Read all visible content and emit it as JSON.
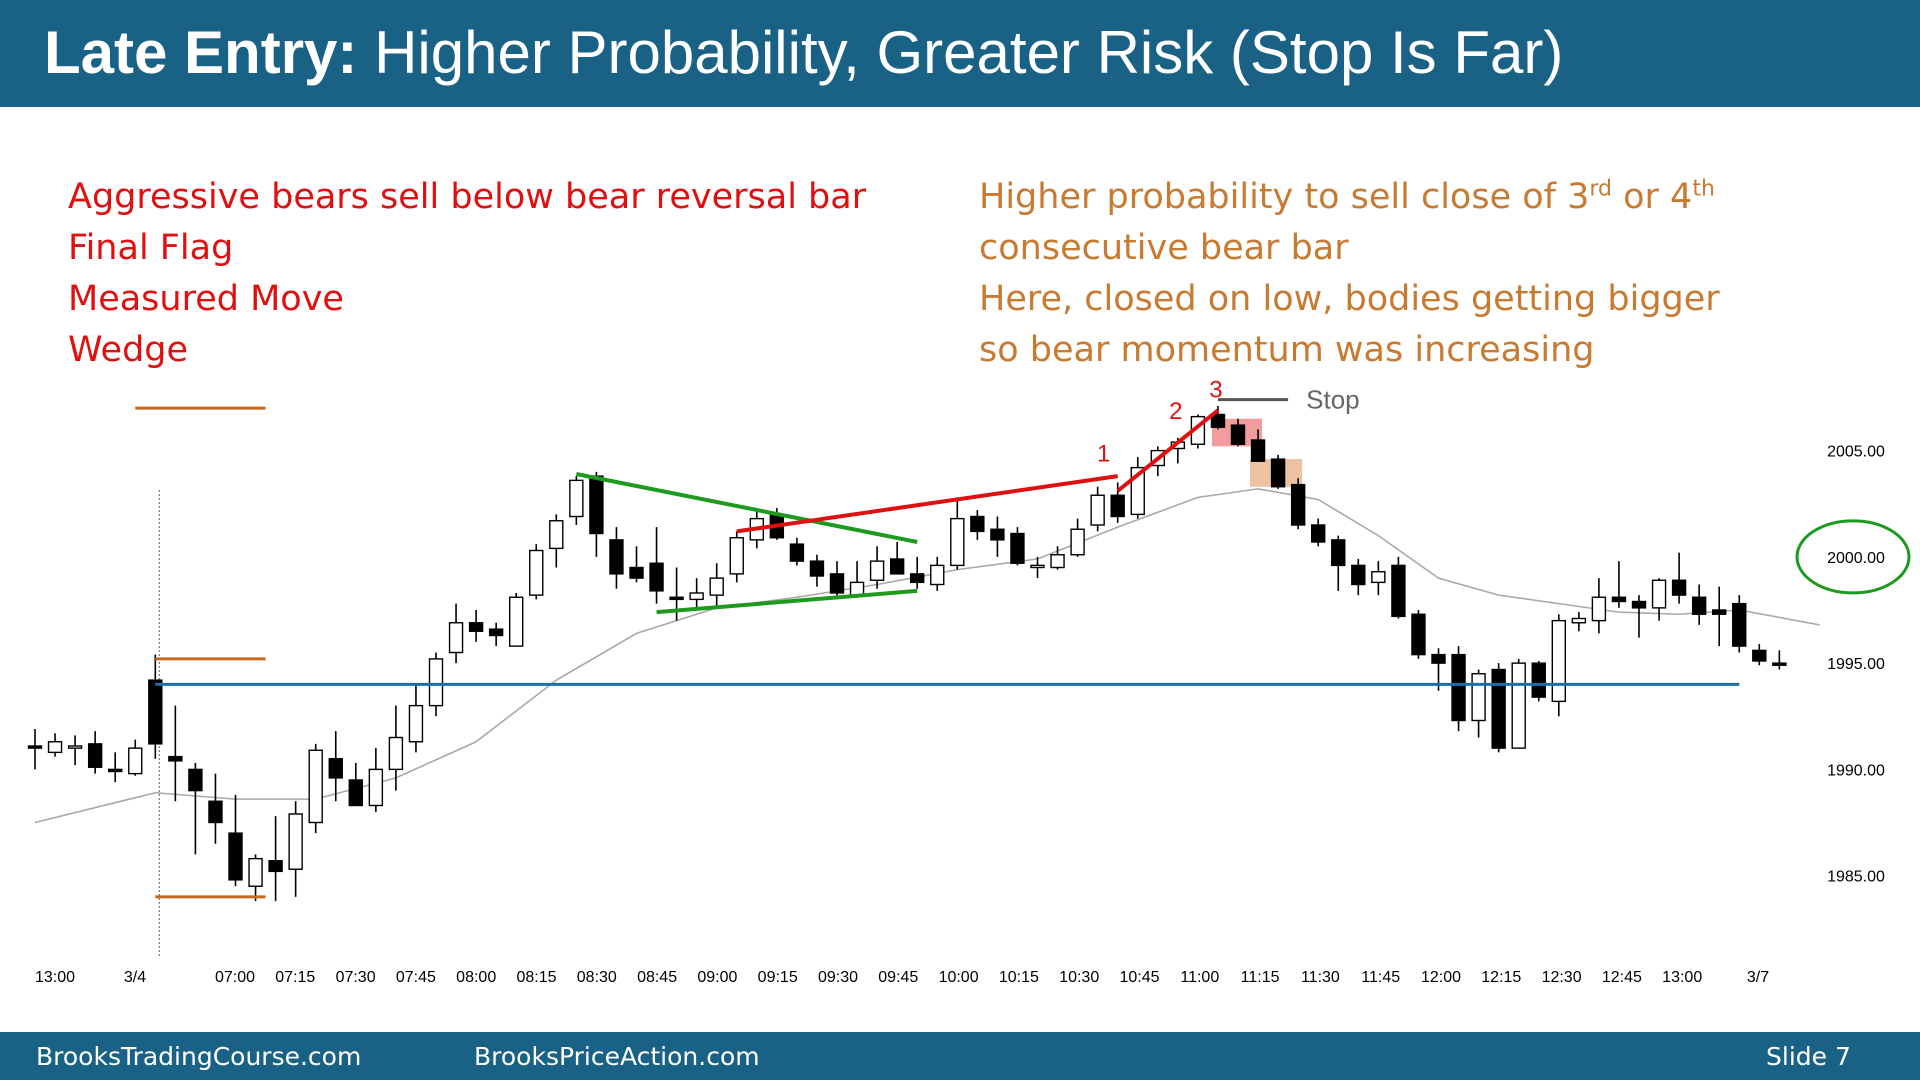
{
  "header": {
    "title_bold": "Late Entry:",
    "title_rest": "Higher Probability, Greater Risk (Stop Is Far)"
  },
  "notes_left": [
    "Aggressive bears sell below bear reversal bar",
    "Final Flag",
    "Measured Move",
    "Wedge"
  ],
  "notes_right": {
    "line1_a": "Higher probability to sell close of 3",
    "line1_sup1": "rd",
    "line1_b": " or 4",
    "line1_sup2": "th",
    "line2": "consecutive bear bar",
    "line3": "Here, closed on low, bodies getting bigger",
    "line4": "so bear momentum was increasing"
  },
  "footer": {
    "left": "BrooksTradingCourse.com",
    "mid": "BrooksPriceAction.com",
    "right": "Slide  7"
  },
  "colors": {
    "header_bg": "#1a6285",
    "red_text": "#e01010",
    "orange_text": "#c87a30",
    "bull_trendline": "#1e9a1e",
    "bear_trendline": "#e01010",
    "support": "#1f6ea8",
    "ema": "#a8a8a8",
    "measured_move": "#c8691e"
  },
  "chart_data": {
    "type": "candlestick",
    "ylim": [
      1981.5,
      2009.5
    ],
    "yticks": [
      1985,
      1990,
      1995,
      2000,
      2005
    ],
    "ytick_labels": [
      "1985.00",
      "1990.00",
      "1995.00",
      "2000.00",
      "2005.00"
    ],
    "x_labels": [
      "13:00",
      "3/4",
      "07:00",
      "07:15",
      "07:30",
      "07:45",
      "08:00",
      "08:15",
      "08:30",
      "08:45",
      "09:00",
      "09:15",
      "09:30",
      "09:45",
      "10:00",
      "10:15",
      "10:30",
      "10:45",
      "11:00",
      "11:15",
      "11:30",
      "11:45",
      "12:00",
      "12:15",
      "12:30",
      "12:45",
      "13:00",
      "3/7"
    ],
    "bar_interval": "5 min",
    "candles": [
      {
        "o": 1991.1,
        "h": 1991.9,
        "l": 1990.0,
        "c": 1991.0
      },
      {
        "o": 1990.8,
        "h": 1991.7,
        "l": 1990.6,
        "c": 1991.3
      },
      {
        "o": 1991.0,
        "h": 1991.6,
        "l": 1990.2,
        "c": 1991.1
      },
      {
        "o": 1991.2,
        "h": 1991.8,
        "l": 1989.8,
        "c": 1990.1
      },
      {
        "o": 1990.0,
        "h": 1990.8,
        "l": 1989.4,
        "c": 1989.9
      },
      {
        "o": 1989.8,
        "h": 1991.4,
        "l": 1989.7,
        "c": 1991.0
      },
      {
        "o": 1994.2,
        "h": 1995.4,
        "l": 1990.5,
        "c": 1991.2
      },
      {
        "o": 1990.6,
        "h": 1993.0,
        "l": 1988.5,
        "c": 1990.4
      },
      {
        "o": 1990.0,
        "h": 1990.3,
        "l": 1986.0,
        "c": 1989.0
      },
      {
        "o": 1988.5,
        "h": 1989.8,
        "l": 1986.5,
        "c": 1987.5
      },
      {
        "o": 1987.0,
        "h": 1988.8,
        "l": 1984.5,
        "c": 1984.8
      },
      {
        "o": 1984.5,
        "h": 1986.0,
        "l": 1983.8,
        "c": 1985.8
      },
      {
        "o": 1985.7,
        "h": 1987.8,
        "l": 1983.8,
        "c": 1985.2
      },
      {
        "o": 1985.3,
        "h": 1988.5,
        "l": 1984.0,
        "c": 1987.9
      },
      {
        "o": 1987.5,
        "h": 1991.2,
        "l": 1987.0,
        "c": 1990.9
      },
      {
        "o": 1990.5,
        "h": 1991.8,
        "l": 1988.5,
        "c": 1989.6
      },
      {
        "o": 1989.5,
        "h": 1990.3,
        "l": 1988.4,
        "c": 1988.3
      },
      {
        "o": 1988.3,
        "h": 1991.0,
        "l": 1988.0,
        "c": 1990.0
      },
      {
        "o": 1990.0,
        "h": 1993.0,
        "l": 1989.0,
        "c": 1991.5
      },
      {
        "o": 1991.3,
        "h": 1994.0,
        "l": 1990.8,
        "c": 1993.0
      },
      {
        "o": 1993.0,
        "h": 1995.5,
        "l": 1992.5,
        "c": 1995.2
      },
      {
        "o": 1995.5,
        "h": 1997.8,
        "l": 1995.0,
        "c": 1996.9
      },
      {
        "o": 1996.9,
        "h": 1997.5,
        "l": 1996.0,
        "c": 1996.5
      },
      {
        "o": 1996.6,
        "h": 1996.9,
        "l": 1995.8,
        "c": 1996.3
      },
      {
        "o": 1995.8,
        "h": 1998.3,
        "l": 1995.8,
        "c": 1998.1
      },
      {
        "o": 1998.2,
        "h": 2000.6,
        "l": 1998.0,
        "c": 2000.3
      },
      {
        "o": 2000.4,
        "h": 2002.0,
        "l": 1999.5,
        "c": 2001.7
      },
      {
        "o": 2001.9,
        "h": 2003.8,
        "l": 2001.5,
        "c": 2003.6
      },
      {
        "o": 2003.8,
        "h": 2004.0,
        "l": 2000.0,
        "c": 2001.1
      },
      {
        "o": 2000.8,
        "h": 2001.4,
        "l": 1998.5,
        "c": 1999.2
      },
      {
        "o": 1999.5,
        "h": 2000.5,
        "l": 1998.8,
        "c": 1999.0
      },
      {
        "o": 1999.7,
        "h": 2001.4,
        "l": 1997.8,
        "c": 1998.4
      },
      {
        "o": 1998.1,
        "h": 1999.5,
        "l": 1997.0,
        "c": 1998.0
      },
      {
        "o": 1998.0,
        "h": 1999.0,
        "l": 1997.6,
        "c": 1998.3
      },
      {
        "o": 1998.2,
        "h": 1999.7,
        "l": 1997.7,
        "c": 1999.0
      },
      {
        "o": 1999.2,
        "h": 2001.2,
        "l": 1998.8,
        "c": 2000.9
      },
      {
        "o": 2000.8,
        "h": 2002.3,
        "l": 2000.4,
        "c": 2001.8
      },
      {
        "o": 2002.0,
        "h": 2002.3,
        "l": 2000.8,
        "c": 2000.9
      },
      {
        "o": 2000.6,
        "h": 2000.9,
        "l": 1999.6,
        "c": 1999.8
      },
      {
        "o": 1999.8,
        "h": 2000.1,
        "l": 1998.6,
        "c": 1999.1
      },
      {
        "o": 1999.2,
        "h": 1999.8,
        "l": 1998.0,
        "c": 1998.3
      },
      {
        "o": 1998.2,
        "h": 1999.8,
        "l": 1998.1,
        "c": 1998.8
      },
      {
        "o": 1998.9,
        "h": 2000.5,
        "l": 1998.5,
        "c": 1999.8
      },
      {
        "o": 1999.9,
        "h": 2000.7,
        "l": 1999.4,
        "c": 1999.2
      },
      {
        "o": 1999.2,
        "h": 2000.0,
        "l": 1998.5,
        "c": 1998.8
      },
      {
        "o": 1998.7,
        "h": 2000.0,
        "l": 1998.4,
        "c": 1999.6
      },
      {
        "o": 1999.6,
        "h": 2002.8,
        "l": 1999.4,
        "c": 2001.8
      },
      {
        "o": 2001.9,
        "h": 2002.2,
        "l": 2000.8,
        "c": 2001.2
      },
      {
        "o": 2001.3,
        "h": 2001.9,
        "l": 2000.0,
        "c": 2000.8
      },
      {
        "o": 2001.1,
        "h": 2001.4,
        "l": 1999.6,
        "c": 1999.7
      },
      {
        "o": 1999.5,
        "h": 2000.0,
        "l": 1999.0,
        "c": 1999.6
      },
      {
        "o": 1999.5,
        "h": 2000.5,
        "l": 1999.4,
        "c": 2000.1
      },
      {
        "o": 2000.1,
        "h": 2001.8,
        "l": 2000.0,
        "c": 2001.3
      },
      {
        "o": 2001.5,
        "h": 2003.3,
        "l": 2001.2,
        "c": 2002.9
      },
      {
        "o": 2002.9,
        "h": 2003.5,
        "l": 2001.6,
        "c": 2001.9
      },
      {
        "o": 2002.0,
        "h": 2004.7,
        "l": 2001.8,
        "c": 2004.2
      },
      {
        "o": 2004.3,
        "h": 2005.2,
        "l": 2003.8,
        "c": 2005.0
      },
      {
        "o": 2005.1,
        "h": 2005.6,
        "l": 2004.4,
        "c": 2005.4
      },
      {
        "o": 2005.3,
        "h": 2006.7,
        "l": 2005.1,
        "c": 2006.6
      },
      {
        "o": 2006.7,
        "h": 2007.1,
        "l": 2006.0,
        "c": 2006.1
      },
      {
        "o": 2006.2,
        "h": 2006.5,
        "l": 2005.2,
        "c": 2005.3
      },
      {
        "o": 2005.5,
        "h": 2006.0,
        "l": 2004.5,
        "c": 2004.5
      },
      {
        "o": 2004.6,
        "h": 2004.8,
        "l": 2003.2,
        "c": 2003.3
      },
      {
        "o": 2003.4,
        "h": 2003.7,
        "l": 2001.3,
        "c": 2001.5
      },
      {
        "o": 2001.5,
        "h": 2001.8,
        "l": 2000.5,
        "c": 2000.7
      },
      {
        "o": 2000.8,
        "h": 2001.0,
        "l": 1998.4,
        "c": 1999.6
      },
      {
        "o": 1999.6,
        "h": 1999.9,
        "l": 1998.2,
        "c": 1998.7
      },
      {
        "o": 1998.8,
        "h": 1999.8,
        "l": 1998.2,
        "c": 1999.3
      },
      {
        "o": 1999.6,
        "h": 2000.0,
        "l": 1997.1,
        "c": 1997.2
      },
      {
        "o": 1997.3,
        "h": 1997.5,
        "l": 1995.2,
        "c": 1995.4
      },
      {
        "o": 1995.4,
        "h": 1995.7,
        "l": 1993.7,
        "c": 1995.0
      },
      {
        "o": 1995.4,
        "h": 1995.8,
        "l": 1991.8,
        "c": 1992.3
      },
      {
        "o": 1992.3,
        "h": 1994.7,
        "l": 1991.5,
        "c": 1994.5
      },
      {
        "o": 1994.7,
        "h": 1995.0,
        "l": 1990.8,
        "c": 1991.0
      },
      {
        "o": 1991.0,
        "h": 1995.2,
        "l": 1991.0,
        "c": 1995.0
      },
      {
        "o": 1995.0,
        "h": 1995.1,
        "l": 1993.2,
        "c": 1993.4
      },
      {
        "o": 1993.2,
        "h": 1997.3,
        "l": 1992.5,
        "c": 1997.0
      },
      {
        "o": 1996.9,
        "h": 1997.4,
        "l": 1996.5,
        "c": 1997.1
      },
      {
        "o": 1997.0,
        "h": 1999.0,
        "l": 1996.4,
        "c": 1998.1
      },
      {
        "o": 1998.1,
        "h": 1999.8,
        "l": 1997.6,
        "c": 1997.9
      },
      {
        "o": 1997.9,
        "h": 1998.2,
        "l": 1996.2,
        "c": 1997.6
      },
      {
        "o": 1997.6,
        "h": 1999.0,
        "l": 1997.0,
        "c": 1998.9
      },
      {
        "o": 1998.9,
        "h": 2000.2,
        "l": 1997.8,
        "c": 1998.2
      },
      {
        "o": 1998.1,
        "h": 1998.7,
        "l": 1996.8,
        "c": 1997.3
      },
      {
        "o": 1997.5,
        "h": 1998.6,
        "l": 1995.8,
        "c": 1997.3
      },
      {
        "o": 1997.8,
        "h": 1998.2,
        "l": 1995.5,
        "c": 1995.8
      },
      {
        "o": 1995.6,
        "h": 1995.9,
        "l": 1994.9,
        "c": 1995.1
      },
      {
        "o": 1995.0,
        "h": 1995.6,
        "l": 1994.7,
        "c": 1994.9
      }
    ],
    "ema": [
      [
        0,
        1987.5
      ],
      [
        6,
        1988.9
      ],
      [
        10,
        1988.6
      ],
      [
        14,
        1988.6
      ],
      [
        18,
        1989.6
      ],
      [
        22,
        1991.3
      ],
      [
        26,
        1994.2
      ],
      [
        30,
        1996.4
      ],
      [
        34,
        1997.6
      ],
      [
        38,
        1998.1
      ],
      [
        42,
        1998.7
      ],
      [
        46,
        1999.4
      ],
      [
        50,
        1999.9
      ],
      [
        54,
        2001.4
      ],
      [
        58,
        2002.8
      ],
      [
        61,
        2003.2
      ],
      [
        64,
        2002.7
      ],
      [
        67,
        2001.0
      ],
      [
        70,
        1999.0
      ],
      [
        73,
        1998.2
      ],
      [
        76,
        1997.8
      ],
      [
        79,
        1997.4
      ],
      [
        82,
        1997.3
      ],
      [
        85,
        1997.5
      ],
      [
        89,
        1996.8
      ]
    ],
    "annotations": {
      "bull_flag_upper": [
        [
          27,
          2003.9
        ],
        [
          44,
          2000.7
        ]
      ],
      "bull_flag_lower": [
        [
          31,
          1997.4
        ],
        [
          44,
          1998.4
        ]
      ],
      "bear_wedge_line": [
        [
          35,
          2001.2
        ],
        [
          54,
          2003.8
        ]
      ],
      "wedge_push": [
        [
          54,
          2003.1
        ],
        [
          59,
          2006.9
        ]
      ],
      "support_line": {
        "y": 1994.0,
        "from": 6,
        "to": 85
      },
      "stop_line": {
        "y": 2007.4,
        "from": 59,
        "to": 62.5,
        "label": "Stop"
      },
      "wedge_labels": [
        {
          "text": "1",
          "i": 53.3,
          "y": 2004.5
        },
        {
          "text": "2",
          "i": 56.9,
          "y": 2006.5
        },
        {
          "text": "3",
          "i": 58.9,
          "y": 2007.5
        }
      ],
      "highlight_red": {
        "i0": 58.7,
        "i1": 61.2,
        "y0": 2005.2,
        "y1": 2006.5
      },
      "highlight_orange": {
        "i0": 60.6,
        "i1": 63.2,
        "y0": 2003.3,
        "y1": 2004.6
      },
      "measured_move_lines": [
        {
          "y": 2007.0,
          "from": 5,
          "to": 11.5
        },
        {
          "y": 1995.2,
          "from": 6,
          "to": 11.5
        },
        {
          "y": 1984.0,
          "from": 6,
          "to": 11.5
        }
      ],
      "day_divider_index": 6.2,
      "circled_tick": "2000.00"
    }
  }
}
